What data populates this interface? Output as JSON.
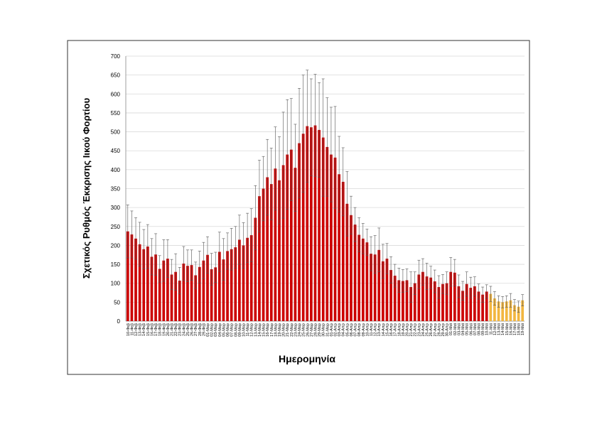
{
  "chart_data": {
    "type": "bar",
    "y_label": "Σχετικός Ρυθμός Έκκρισης Ιικού Φορτίου",
    "x_label": "Ημερομηνία",
    "categories": [
      "10-Φεβ",
      "11-Φεβ",
      "12-Φεβ",
      "13-Φεβ",
      "14-Φεβ",
      "15-Φεβ",
      "16-Φεβ",
      "17-Φεβ",
      "18-Φεβ",
      "19-Φεβ",
      "20-Φεβ",
      "21-Φεβ",
      "22-Φεβ",
      "23-Φεβ",
      "24-Φεβ",
      "25-Φεβ",
      "26-Φεβ",
      "27-Φεβ",
      "28-Φεβ",
      "29-Φεβ",
      "01-Μαρ",
      "02-Μαρ",
      "03-Μαρ",
      "04-Μαρ",
      "05-Μαρ",
      "06-Μαρ",
      "07-Μαρ",
      "08-Μαρ",
      "09-Μαρ",
      "10-Μαρ",
      "11-Μαρ",
      "12-Μαρ",
      "13-Μαρ",
      "14-Μαρ",
      "15-Μαρ",
      "16-Μαρ",
      "17-Μαρ",
      "18-Μαρ",
      "19-Μαρ",
      "20-Μαρ",
      "21-Μαρ",
      "22-Μαρ",
      "23-Μαρ",
      "24-Μαρ",
      "25-Μαρ",
      "26-Μαρ",
      "27-Μαρ",
      "28-Μαρ",
      "29-Μαρ",
      "30-Μαρ",
      "31-Μαρ",
      "01-Απρ",
      "02-Απρ",
      "03-Απρ",
      "04-Απρ",
      "05-Απρ",
      "06-Απρ",
      "07-Απρ",
      "08-Απρ",
      "09-Απρ",
      "10-Απρ",
      "11-Απρ",
      "12-Απρ",
      "13-Απρ",
      "14-Απρ",
      "15-Απρ",
      "16-Απρ",
      "17-Απρ",
      "18-Απρ",
      "19-Απρ",
      "20-Απρ",
      "21-Απρ",
      "22-Απρ",
      "23-Απρ",
      "24-Απρ",
      "25-Απρ",
      "26-Απρ",
      "27-Απρ",
      "28-Απρ",
      "29-Απρ",
      "30-Απρ",
      "01-Μαϊ",
      "02-Μαϊ",
      "03-Μαϊ",
      "04-Μαϊ",
      "05-Μαϊ",
      "06-Μαϊ",
      "07-Μαϊ",
      "08-Μαϊ",
      "09-Μαϊ",
      "10-Μαϊ",
      "11-Μαϊ",
      "12-Μαϊ",
      "13-Μαϊ",
      "14-Μαϊ",
      "15-Μαϊ",
      "16-Μαϊ",
      "17-Μαϊ",
      "18-Μαϊ",
      "19-Μαϊ"
    ],
    "series": [
      {
        "color": "#cc0000",
        "values": [
          237,
          229,
          218,
          203,
          190,
          197,
          170,
          176,
          138,
          160,
          165,
          123,
          130,
          107,
          152,
          146,
          148,
          121,
          143,
          160,
          175,
          137,
          142,
          183,
          163,
          185,
          190,
          195,
          215,
          200,
          220,
          227,
          273,
          330,
          350,
          380,
          362,
          403,
          372,
          412,
          440,
          453,
          405,
          470,
          495,
          515,
          512,
          517,
          505,
          485,
          460,
          440,
          432,
          388,
          368,
          310,
          280,
          255,
          228,
          218,
          208,
          178,
          176,
          188,
          158,
          165,
          135,
          120,
          108,
          106,
          108,
          90,
          100,
          123,
          130,
          118,
          115,
          105,
          90,
          98,
          100,
          130,
          128,
          92,
          80,
          98,
          88,
          92,
          78,
          70,
          78,
          null,
          null,
          null,
          null,
          null,
          null,
          null,
          null,
          null
        ],
        "errors": [
          70,
          62,
          55,
          58,
          52,
          58,
          48,
          55,
          35,
          55,
          50,
          40,
          48,
          35,
          45,
          42,
          40,
          35,
          42,
          48,
          48,
          42,
          40,
          52,
          55,
          48,
          55,
          55,
          65,
          60,
          65,
          70,
          85,
          95,
          85,
          100,
          95,
          110,
          115,
          140,
          145,
          135,
          115,
          145,
          155,
          148,
          128,
          135,
          125,
          155,
          130,
          125,
          135,
          100,
          90,
          85,
          50,
          45,
          45,
          40,
          35,
          45,
          50,
          58,
          45,
          40,
          35,
          30,
          32,
          30,
          30,
          40,
          30,
          38,
          35,
          35,
          30,
          30,
          30,
          25,
          30,
          38,
          35,
          30,
          25,
          32,
          28,
          25,
          20,
          20,
          18,
          null,
          null,
          null,
          null,
          null,
          null,
          null,
          null,
          null
        ]
      },
      {
        "color": "#f2b640",
        "values": [
          null,
          null,
          null,
          null,
          null,
          null,
          null,
          null,
          null,
          null,
          null,
          null,
          null,
          null,
          null,
          null,
          null,
          null,
          null,
          null,
          null,
          null,
          null,
          null,
          null,
          null,
          null,
          null,
          null,
          null,
          null,
          null,
          null,
          null,
          null,
          null,
          null,
          null,
          null,
          null,
          null,
          null,
          null,
          null,
          null,
          null,
          null,
          null,
          null,
          null,
          null,
          null,
          null,
          null,
          null,
          null,
          null,
          null,
          null,
          null,
          null,
          null,
          null,
          null,
          null,
          null,
          null,
          null,
          null,
          null,
          null,
          null,
          null,
          null,
          null,
          null,
          null,
          null,
          null,
          null,
          null,
          null,
          null,
          null,
          null,
          null,
          null,
          null,
          null,
          null,
          null,
          72,
          60,
          52,
          50,
          52,
          55,
          42,
          38,
          55
        ],
        "errors": [
          null,
          null,
          null,
          null,
          null,
          null,
          null,
          null,
          null,
          null,
          null,
          null,
          null,
          null,
          null,
          null,
          null,
          null,
          null,
          null,
          null,
          null,
          null,
          null,
          null,
          null,
          null,
          null,
          null,
          null,
          null,
          null,
          null,
          null,
          null,
          null,
          null,
          null,
          null,
          null,
          null,
          null,
          null,
          null,
          null,
          null,
          null,
          null,
          null,
          null,
          null,
          null,
          null,
          null,
          null,
          null,
          null,
          null,
          null,
          null,
          null,
          null,
          null,
          null,
          null,
          null,
          null,
          null,
          null,
          null,
          null,
          null,
          null,
          null,
          null,
          null,
          null,
          null,
          null,
          null,
          null,
          null,
          null,
          null,
          null,
          null,
          null,
          null,
          null,
          null,
          null,
          20,
          18,
          15,
          15,
          15,
          18,
          15,
          15,
          15
        ]
      }
    ],
    "ylim": [
      0,
      700
    ],
    "yticks": [
      0,
      50,
      100,
      150,
      200,
      250,
      300,
      350,
      400,
      450,
      500,
      550,
      600,
      650,
      700
    ],
    "grid": true
  }
}
